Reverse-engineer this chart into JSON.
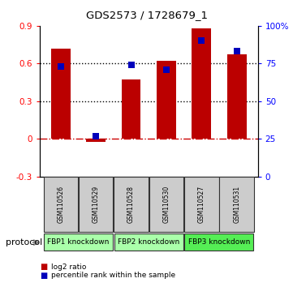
{
  "title": "GDS2573 / 1728679_1",
  "samples": [
    "GSM110526",
    "GSM110529",
    "GSM110528",
    "GSM110530",
    "GSM110527",
    "GSM110531"
  ],
  "log2_ratio": [
    0.72,
    -0.025,
    0.47,
    0.62,
    0.88,
    0.67
  ],
  "percentile_rank": [
    73,
    27,
    74,
    71,
    90,
    83
  ],
  "bar_color": "#bb0000",
  "dot_color": "#0000bb",
  "ylim_left": [
    -0.3,
    0.9
  ],
  "ylim_right": [
    0,
    100
  ],
  "yticks_left": [
    -0.3,
    0.0,
    0.3,
    0.6,
    0.9
  ],
  "ytick_labels_left": [
    "-0.3",
    "0",
    "0.3",
    "0.6",
    "0.9"
  ],
  "yticks_right_pct": [
    0,
    25,
    50,
    75,
    100
  ],
  "ytick_labels_right": [
    "0",
    "25",
    "50",
    "75",
    "100%"
  ],
  "hline_y": [
    0.3,
    0.6
  ],
  "zero_line_y": 0.0,
  "groups": [
    {
      "label": "FBP1 knockdown",
      "color": "#aaffaa"
    },
    {
      "label": "FBP2 knockdown",
      "color": "#aaffaa"
    },
    {
      "label": "FBP3 knockdown",
      "color": "#55ee55"
    }
  ],
  "protocol_label": "protocol",
  "legend_items": [
    {
      "label": "log2 ratio",
      "color": "#bb0000"
    },
    {
      "label": "percentile rank within the sample",
      "color": "#0000bb"
    }
  ],
  "sample_box_color": "#cccccc",
  "bar_width": 0.55,
  "dot_size": 30,
  "bg_color": "#ffffff"
}
